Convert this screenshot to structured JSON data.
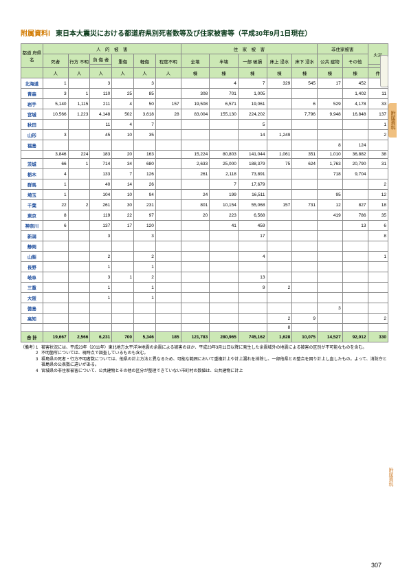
{
  "title_label": "附属資料Ⅰ",
  "title_text": "東日本大震災における都道府県別死者数等及び住家被害等（平成30年9月1日現在）",
  "page_num": "307",
  "sidebar_text": "附属資料",
  "headers": {
    "pref": "都道\n府県名",
    "human": "人　的　被　害",
    "house": "住　家　被　害",
    "nonhouse": "非住家被害",
    "fire": "火災",
    "dead": "死者",
    "missing": "行方\n不明",
    "injured": "負 傷 者",
    "severe": "重傷",
    "light": "軽傷",
    "unknown": "程度不明",
    "full": "全壊",
    "half": "半壊",
    "partial": "一部\n破損",
    "flood_over": "床上\n浸水",
    "flood_under": "床下\n浸水",
    "public": "公共\n建物",
    "other": "その他",
    "u_person": "人",
    "u_house": "棟",
    "u_case": "件"
  },
  "rows": [
    {
      "p": "北海道",
      "d": [
        "1",
        "",
        "3",
        "",
        "3",
        "",
        "",
        "4",
        "7",
        "329",
        "545",
        "17",
        "452",
        "4"
      ]
    },
    {
      "p": "青森",
      "d": [
        "3",
        "1",
        "110",
        "25",
        "85",
        "",
        "308",
        "701",
        "1,005",
        "",
        "",
        "",
        "1,402",
        "11"
      ]
    },
    {
      "p": "岩手",
      "d": [
        "5,140",
        "1,115",
        "211",
        "4",
        "50",
        "157",
        "19,508",
        "6,571",
        "19,061",
        "",
        "6",
        "529",
        "4,178",
        "33"
      ]
    },
    {
      "p": "宮城",
      "d": [
        "10,566",
        "1,223",
        "4,148",
        "502",
        "3,618",
        "28",
        "83,004",
        "155,130",
        "224,202",
        "",
        "7,796",
        "9,948",
        "16,848",
        "137"
      ]
    },
    {
      "p": "秋田",
      "d": [
        "",
        "",
        "11",
        "4",
        "7",
        "",
        "",
        "",
        "5",
        "",
        "",
        "",
        "",
        "1"
      ]
    },
    {
      "p": "山形",
      "d": [
        "3",
        "",
        "45",
        "10",
        "35",
        "",
        "",
        "",
        "14",
        "1,249",
        "",
        "",
        "",
        "2"
      ]
    },
    {
      "p": "福島",
      "d": [
        "",
        "",
        "",
        "",
        "",
        "",
        "",
        "",
        "",
        "",
        "",
        "8",
        "124",
        ""
      ]
    },
    {
      "p": "",
      "d": [
        "3,846",
        "224",
        "183",
        "20",
        "163",
        "",
        "15,224",
        "80,803",
        "141,044",
        "1,061",
        "351",
        "1,010",
        "36,882",
        "38"
      ]
    },
    {
      "p": "茨城",
      "d": [
        "66",
        "1",
        "714",
        "34",
        "680",
        "",
        "2,633",
        "25,000",
        "188,379",
        "75",
        "624",
        "1,763",
        "20,790",
        "31"
      ]
    },
    {
      "p": "栃木",
      "d": [
        "4",
        "",
        "133",
        "7",
        "126",
        "",
        "261",
        "2,118",
        "73,891",
        "",
        "",
        "718",
        "9,704",
        ""
      ]
    },
    {
      "p": "群馬",
      "d": [
        "1",
        "",
        "40",
        "14",
        "26",
        "",
        "",
        "7",
        "17,679",
        "",
        "",
        "",
        "",
        "2"
      ]
    },
    {
      "p": "埼玉",
      "d": [
        "1",
        "",
        "104",
        "10",
        "94",
        "",
        "24",
        "199",
        "16,511",
        "",
        "",
        "95",
        "",
        "12"
      ]
    },
    {
      "p": "千葉",
      "d": [
        "22",
        "2",
        "261",
        "30",
        "231",
        "",
        "801",
        "10,154",
        "55,068",
        "157",
        "731",
        "12",
        "827",
        "18"
      ]
    },
    {
      "p": "東京",
      "d": [
        "8",
        "",
        "119",
        "22",
        "97",
        "",
        "20",
        "223",
        "6,568",
        "",
        "",
        "419",
        "786",
        "35"
      ]
    },
    {
      "p": "神奈川",
      "d": [
        "6",
        "",
        "137",
        "17",
        "120",
        "",
        "",
        "41",
        "459",
        "",
        "",
        "",
        "13",
        "6"
      ]
    },
    {
      "p": "新潟",
      "d": [
        "",
        "",
        "3",
        "",
        "3",
        "",
        "",
        "",
        "17",
        "",
        "",
        "",
        "",
        "8"
      ]
    },
    {
      "p": "静岡",
      "d": [
        "",
        "",
        "",
        "",
        "",
        "",
        "",
        "",
        "",
        "",
        "",
        "",
        "",
        ""
      ]
    },
    {
      "p": "山梨",
      "d": [
        "",
        "",
        "2",
        "",
        "2",
        "",
        "",
        "",
        "4",
        "",
        "",
        "",
        "",
        "1"
      ]
    },
    {
      "p": "長野",
      "d": [
        "",
        "",
        "1",
        "",
        "1",
        "",
        "",
        "",
        "",
        "",
        "",
        "",
        "",
        ""
      ]
    },
    {
      "p": "岐阜",
      "d": [
        "",
        "",
        "3",
        "1",
        "2",
        "",
        "",
        "",
        "13",
        "",
        "",
        "",
        "",
        ""
      ]
    },
    {
      "p": "三重",
      "d": [
        "",
        "",
        "1",
        "",
        "1",
        "",
        "",
        "",
        "9",
        "2",
        "",
        "",
        "",
        ""
      ]
    },
    {
      "p": "大阪",
      "d": [
        "",
        "",
        "1",
        "",
        "1",
        "",
        "",
        "",
        "",
        "",
        "",
        "",
        "",
        ""
      ]
    },
    {
      "p": "徳島",
      "d": [
        "",
        "",
        "",
        "",
        "",
        "",
        "",
        "",
        "",
        "",
        "",
        "3",
        "",
        ""
      ]
    },
    {
      "p": "高知",
      "d": [
        "",
        "",
        "",
        "",
        "",
        "",
        "",
        "",
        "",
        "2",
        "9",
        "",
        "",
        "2"
      ]
    },
    {
      "p": "",
      "d": [
        "",
        "",
        "",
        "",
        "",
        "",
        "",
        "",
        "",
        "8",
        "",
        "",
        "",
        ""
      ]
    }
  ],
  "total": {
    "p": "合 計",
    "d": [
      "19,667",
      "2,566",
      "6,231",
      "700",
      "5,346",
      "185",
      "121,783",
      "280,965",
      "745,162",
      "1,628",
      "10,075",
      "14,527",
      "92,012",
      "330"
    ]
  },
  "notes": [
    "被害状況には、平成23年（2011年）東北地方太平洋沖地震の余震による被害のほか、平成23年3月11日以降に発生した余震域外の地震による被害の区別が不可能なものを含む。",
    "不明箇所については、現時点で調査しているものも含む。",
    "福島県の死者・行方不明者数については、他県の計上方法と異なるため、可能な範囲において重複計上や計上漏れを排除し、一部他県との整合を図り計上し直したもの。よって、消防庁と福島県の公表数に違いがある。",
    "宮城県の非住家被害について、公共建物とその他の区分が整理できていない市町村の数値は、公共建物に計上"
  ],
  "note_prefix": "（備考）"
}
